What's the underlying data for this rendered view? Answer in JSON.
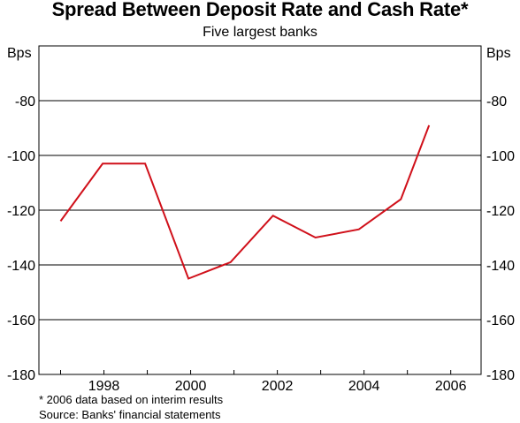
{
  "chart_data": {
    "type": "line",
    "title": "Spread Between Deposit Rate and Cash Rate*",
    "subtitle": "Five largest banks",
    "ylabel_left": "Bps",
    "ylabel_right": "Bps",
    "ylim": [
      -180,
      -60
    ],
    "yticks": [
      -180,
      -160,
      -140,
      -120,
      -100,
      -80
    ],
    "xlim": [
      1996.5,
      2006.7
    ],
    "xticks": [
      1998,
      2000,
      2002,
      2004,
      2006
    ],
    "grid": true,
    "line_color": "#d0101a",
    "series": [
      {
        "x": [
          1997.0,
          1997.97,
          1998.95,
          1999.95,
          2000.92,
          2001.9,
          2002.88,
          2003.88,
          2004.85,
          2005.5
        ],
        "values": [
          -124,
          -103,
          -103,
          -145,
          -139,
          -122,
          -130,
          -127,
          -116,
          -89
        ]
      }
    ],
    "footnotes": [
      "* 2006 data based on interim results",
      "Source: Banks' financial statements"
    ]
  }
}
